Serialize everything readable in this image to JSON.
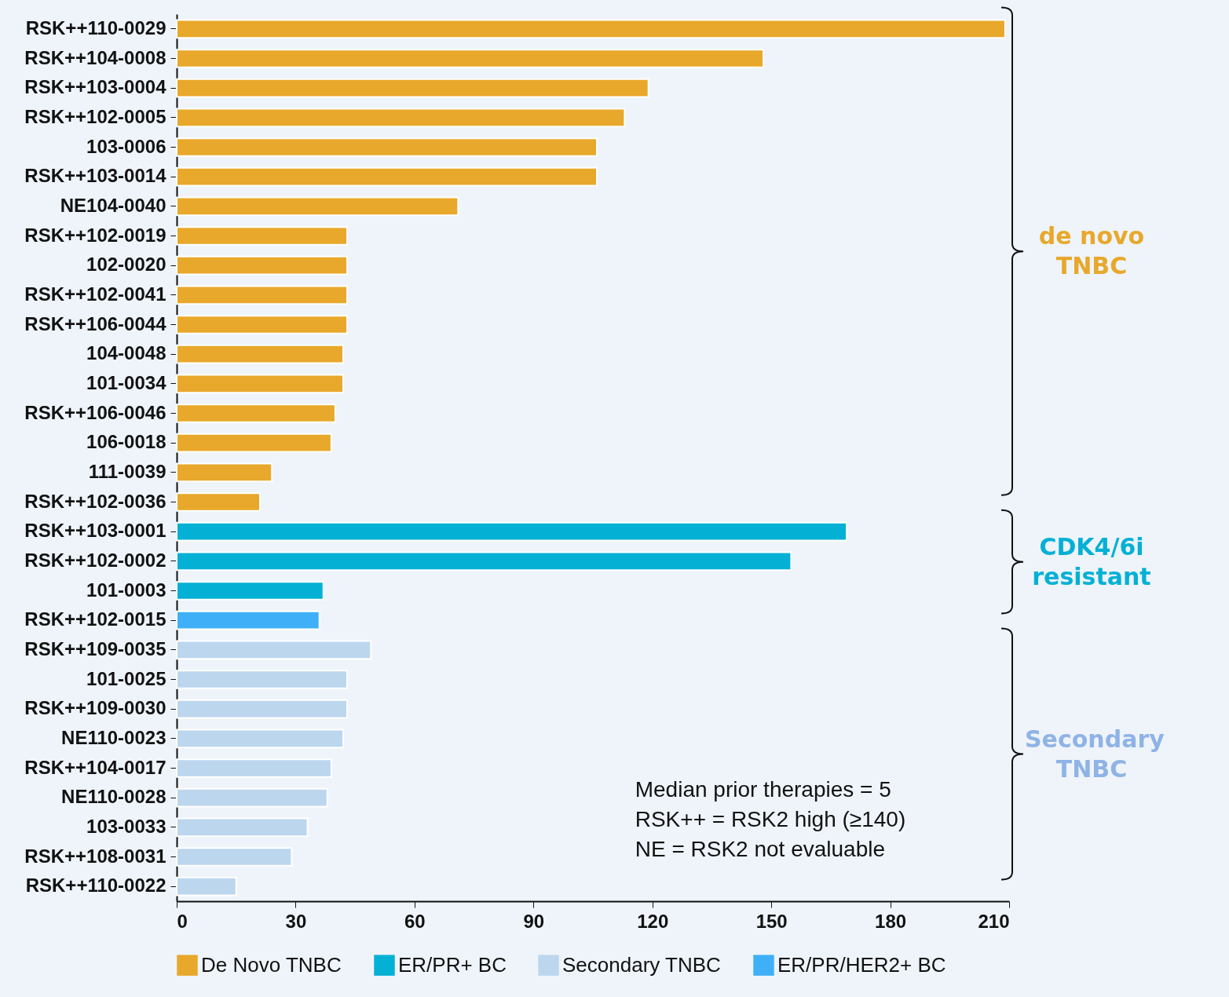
{
  "chart_data": {
    "type": "bar",
    "orientation": "horizontal",
    "categories": [
      "RSK++110-0029",
      "RSK++104-0008",
      "RSK++103-0004",
      "RSK++102-0005",
      "103-0006",
      "RSK++103-0014",
      "NE104-0040",
      "RSK++102-0019",
      "102-0020",
      "RSK++102-0041",
      "RSK++106-0044",
      "104-0048",
      "101-0034",
      "RSK++106-0046",
      "106-0018",
      "111-0039",
      "RSK++102-0036",
      "RSK++103-0001",
      "RSK++102-0002",
      "101-0003",
      "RSK++102-0015",
      "RSK++109-0035",
      "101-0025",
      "RSK++109-0030",
      "NE110-0023",
      "RSK++104-0017",
      "NE110-0028",
      "103-0033",
      "RSK++108-0031",
      "RSK++110-0022"
    ],
    "series": [
      {
        "name": "De Novo TNBC",
        "color": "#e8a82b",
        "values": [
          209,
          148,
          119,
          113,
          106,
          106,
          71,
          43,
          43,
          43,
          43,
          42,
          42,
          40,
          39,
          24,
          21,
          null,
          null,
          null,
          null,
          null,
          null,
          null,
          null,
          null,
          null,
          null,
          null,
          null
        ]
      },
      {
        "name": "ER/PR+ BC",
        "color": "#05b0d5",
        "values": [
          null,
          null,
          null,
          null,
          null,
          null,
          null,
          null,
          null,
          null,
          null,
          null,
          null,
          null,
          null,
          null,
          null,
          169,
          155,
          37,
          null,
          null,
          null,
          null,
          null,
          null,
          null,
          null,
          null,
          null
        ]
      },
      {
        "name": "Secondary TNBC",
        "color": "#bcd6ee",
        "values": [
          null,
          null,
          null,
          null,
          null,
          null,
          null,
          null,
          null,
          null,
          null,
          null,
          null,
          null,
          null,
          null,
          null,
          null,
          null,
          null,
          null,
          49,
          43,
          43,
          42,
          39,
          38,
          33,
          29,
          15
        ]
      },
      {
        "name": "ER/PR/HER2+ BC",
        "color": "#3fb0f8",
        "values": [
          null,
          null,
          null,
          null,
          null,
          null,
          null,
          null,
          null,
          null,
          null,
          null,
          null,
          null,
          null,
          null,
          null,
          null,
          null,
          null,
          36,
          null,
          null,
          null,
          null,
          null,
          null,
          null,
          null,
          null
        ]
      }
    ],
    "xlim": [
      0,
      210
    ],
    "xticks": [
      0,
      30,
      60,
      90,
      120,
      150,
      180,
      210
    ],
    "grid": false,
    "legend": "bottom",
    "annotations": [
      "de novo TNBC",
      "CDK4/6i resistant",
      "Secondary TNBC",
      "Median prior therapies = 5",
      "RSK++ = RSK2 high (≥140)",
      "NE = RSK2 not evaluable"
    ]
  }
}
